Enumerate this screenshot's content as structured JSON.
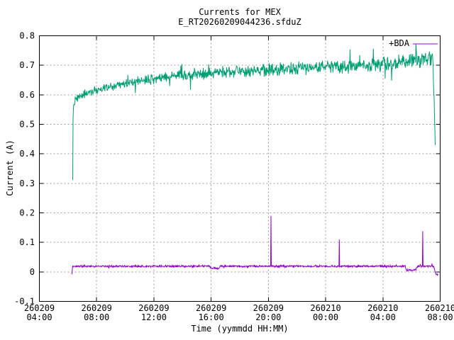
{
  "title": "Currents for MEX",
  "subtitle": "E_RT20260209044236.sfduZ",
  "chart_data": {
    "type": "line",
    "title": "Currents for MEX",
    "subtitle": "E_RT20260209044236.sfduZ",
    "xlabel": "Time (yymmdd HH:MM)",
    "ylabel": "Current (A)",
    "ylim": [
      -0.1,
      0.8
    ],
    "ytick_labels": [
      "-0.1",
      "0",
      "0.1",
      "0.2",
      "0.3",
      "0.4",
      "0.5",
      "0.6",
      "0.7",
      "0.8"
    ],
    "x_ticks": [
      {
        "date": "260209",
        "time": "04:00"
      },
      {
        "date": "260209",
        "time": "08:00"
      },
      {
        "date": "260209",
        "time": "12:00"
      },
      {
        "date": "260209",
        "time": "16:00"
      },
      {
        "date": "260209",
        "time": "20:00"
      },
      {
        "date": "260210",
        "time": "00:00"
      },
      {
        "date": "260210",
        "time": "04:00"
      },
      {
        "date": "260210",
        "time": "08:00"
      }
    ],
    "x_range_hours": [
      4,
      32
    ],
    "grid": true,
    "legend": {
      "position": "top-right",
      "entries": [
        {
          "label": "+BDA",
          "color": "#9400d3"
        }
      ]
    },
    "series": [
      {
        "name": "main-current-green",
        "color": "#009e73",
        "t_range": [
          6.33,
          31.66
        ],
        "keyframes": [
          [
            6.33,
            0.305
          ],
          [
            6.36,
            0.555
          ],
          [
            6.55,
            0.585
          ],
          [
            7.0,
            0.601
          ],
          [
            8,
            0.615
          ],
          [
            9,
            0.627
          ],
          [
            10,
            0.638
          ],
          [
            11,
            0.648
          ],
          [
            12,
            0.655
          ],
          [
            13,
            0.662
          ],
          [
            14,
            0.667
          ],
          [
            16,
            0.674
          ],
          [
            18,
            0.68
          ],
          [
            20,
            0.684
          ],
          [
            22,
            0.69
          ],
          [
            24,
            0.694
          ],
          [
            26,
            0.699
          ],
          [
            28,
            0.704
          ],
          [
            29.5,
            0.709
          ],
          [
            30.5,
            0.715
          ],
          [
            31.3,
            0.721
          ],
          [
            31.5,
            0.718
          ],
          [
            31.66,
            0.43
          ]
        ],
        "noise": [
          0.013,
          0.024
        ],
        "spikes": [
          [
            10.7,
            0.606
          ],
          [
            13.1,
            0.63
          ],
          [
            14.55,
            0.617
          ],
          [
            28.15,
            0.655
          ],
          [
            28.6,
            0.648
          ]
        ]
      },
      {
        "name": "secondary-current-purple",
        "color": "#9400d3",
        "t_range": [
          6.28,
          31.86
        ],
        "keyframes": [
          [
            6.28,
            -0.004
          ],
          [
            6.32,
            0.019
          ],
          [
            15.9,
            0.019
          ],
          [
            16.0,
            0.012
          ],
          [
            16.55,
            0.012
          ],
          [
            16.65,
            0.019
          ],
          [
            29.55,
            0.019
          ],
          [
            29.65,
            0.006
          ],
          [
            30.3,
            0.006
          ],
          [
            30.4,
            0.019
          ],
          [
            31.55,
            0.019
          ],
          [
            31.7,
            -0.008
          ],
          [
            31.86,
            -0.01
          ]
        ],
        "noise": [
          0.0032,
          0.0032
        ],
        "spikes": [
          [
            20.17,
            0.19
          ],
          [
            24.95,
            0.11
          ],
          [
            30.78,
            0.138
          ]
        ]
      }
    ],
    "colors": {
      "background": "#ffffff",
      "axis": "#000000",
      "grid": "#9c9c9c",
      "green_series": "#009e73",
      "purple_series": "#9400d3"
    }
  }
}
